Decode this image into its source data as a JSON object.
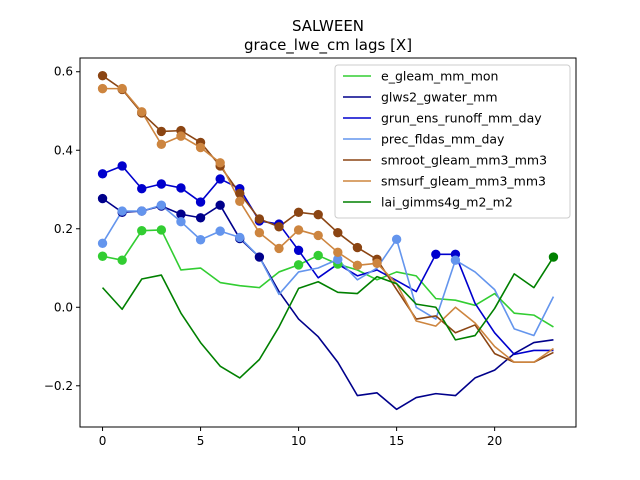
{
  "chart_data": {
    "type": "line",
    "title": "SALWEEN",
    "subtitle": "grace_lwe_cm lags [X]",
    "xlabel": "",
    "ylabel": "",
    "xlim": [
      -1.15,
      24.15
    ],
    "ylim": [
      -0.305,
      0.635
    ],
    "xticks": [
      0,
      5,
      10,
      15,
      20
    ],
    "yticks": [
      -0.2,
      0.0,
      0.2,
      0.4,
      0.6
    ],
    "ytick_labels": [
      "−0.2",
      "0.0",
      "0.2",
      "0.4",
      "0.6"
    ],
    "legend_position": "upper right",
    "grid": false,
    "x": [
      0,
      1,
      2,
      3,
      4,
      5,
      6,
      7,
      8,
      9,
      10,
      11,
      12,
      13,
      14,
      15,
      16,
      17,
      18,
      19,
      20,
      21,
      22,
      23
    ],
    "series": [
      {
        "name": "e_gleam_mm_mon",
        "color": "#32cd32",
        "values": [
          0.13,
          0.12,
          0.195,
          0.197,
          0.095,
          0.1,
          0.063,
          0.055,
          0.05,
          0.09,
          0.108,
          0.132,
          0.11,
          0.095,
          0.07,
          0.09,
          0.08,
          0.022,
          0.018,
          0.005,
          0.035,
          -0.015,
          -0.02,
          -0.05
        ],
        "markers": [
          0,
          1,
          2,
          3,
          10,
          11,
          12
        ]
      },
      {
        "name": "glws2_gwater_mm",
        "color": "#00008b",
        "values": [
          0.277,
          0.242,
          0.245,
          0.258,
          0.237,
          0.228,
          0.26,
          0.175,
          0.128,
          0.04,
          -0.03,
          -0.075,
          -0.14,
          -0.225,
          -0.218,
          -0.26,
          -0.23,
          -0.22,
          -0.225,
          -0.18,
          -0.16,
          -0.118,
          -0.09,
          -0.083
        ],
        "markers": [
          0,
          1,
          2,
          3,
          4,
          5,
          6,
          7,
          8
        ]
      },
      {
        "name": "grun_ens_runoff_mm_day",
        "color": "#0000cd",
        "values": [
          0.34,
          0.36,
          0.302,
          0.314,
          0.304,
          0.268,
          0.327,
          0.302,
          0.22,
          0.212,
          0.145,
          0.075,
          0.11,
          0.08,
          0.095,
          0.068,
          0.04,
          0.135,
          0.135,
          0.01,
          -0.065,
          -0.12,
          -0.11,
          -0.11
        ],
        "markers": [
          0,
          1,
          2,
          3,
          4,
          5,
          6,
          7,
          8,
          9,
          10,
          17,
          18
        ]
      },
      {
        "name": "prec_fldas_mm_day",
        "color": "#6495ed",
        "values": [
          0.163,
          0.245,
          0.245,
          0.26,
          0.218,
          0.172,
          0.194,
          0.178,
          0.128,
          0.033,
          0.09,
          0.1,
          0.122,
          0.07,
          0.1,
          0.173,
          0.0,
          -0.03,
          0.12,
          0.09,
          0.045,
          -0.055,
          -0.072,
          0.027
        ],
        "markers": [
          0,
          1,
          2,
          3,
          4,
          5,
          6,
          7,
          12,
          15,
          18
        ]
      },
      {
        "name": "smroot_gleam_mm3_mm3",
        "color": "#8b4513",
        "values": [
          0.59,
          0.555,
          0.495,
          0.448,
          0.45,
          0.42,
          0.36,
          0.29,
          0.225,
          0.205,
          0.242,
          0.236,
          0.19,
          0.152,
          0.122,
          0.045,
          -0.03,
          -0.022,
          -0.065,
          -0.045,
          -0.118,
          -0.14,
          -0.14,
          -0.115
        ],
        "markers": [
          0,
          1,
          2,
          3,
          4,
          5,
          6,
          7,
          8,
          9,
          10,
          11,
          12,
          13,
          14
        ]
      },
      {
        "name": "smsurf_gleam_mm3_mm3",
        "color": "#cd853f",
        "values": [
          0.557,
          0.557,
          0.498,
          0.415,
          0.436,
          0.407,
          0.368,
          0.27,
          0.19,
          0.15,
          0.197,
          0.183,
          0.14,
          0.107,
          0.112,
          0.06,
          -0.035,
          -0.048,
          0.0,
          -0.04,
          -0.1,
          -0.14,
          -0.14,
          -0.105
        ],
        "markers": [
          0,
          1,
          2,
          3,
          4,
          5,
          6,
          7,
          8,
          9,
          10,
          11,
          12,
          13,
          14
        ]
      },
      {
        "name": "lai_gimms4g_m2_m2",
        "color": "#008000",
        "values": [
          0.05,
          -0.005,
          0.072,
          0.082,
          -0.015,
          -0.09,
          -0.15,
          -0.18,
          -0.133,
          -0.05,
          0.048,
          0.065,
          0.038,
          0.035,
          0.078,
          0.06,
          0.008,
          0.0,
          -0.083,
          -0.072,
          -0.003,
          0.085,
          0.05,
          0.128
        ],
        "markers": [
          23
        ]
      }
    ]
  }
}
